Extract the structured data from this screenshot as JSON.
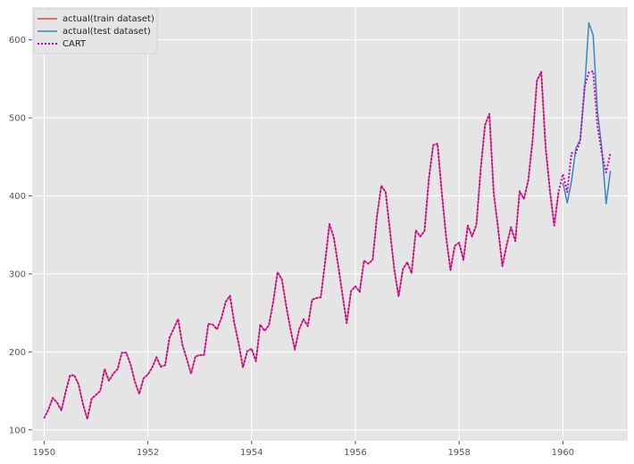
{
  "chart_data": {
    "type": "line",
    "title": "",
    "xlabel": "",
    "ylabel": "",
    "xlim": [
      1949.77,
      1961.25
    ],
    "ylim": [
      86,
      642
    ],
    "x_ticks": [
      "1950",
      "1952",
      "1954",
      "1956",
      "1958",
      "1960"
    ],
    "y_ticks": [
      "100",
      "200",
      "300",
      "400",
      "500",
      "600"
    ],
    "grid": true,
    "legend_position": "top-left",
    "colors": {
      "train": "#e24a33",
      "test": "#348abd",
      "cart": "#bf00bf",
      "background": "#e5e5e5",
      "grid": "#ffffff"
    },
    "series": [
      {
        "name": "actual(train dataset)",
        "x_start": 1950.0,
        "x_step": 0.08333,
        "values": [
          115,
          126,
          141,
          135,
          125,
          149,
          170,
          170,
          158,
          133,
          114,
          140,
          145,
          150,
          178,
          163,
          172,
          178,
          199,
          199,
          184,
          162,
          146,
          166,
          171,
          180,
          193,
          181,
          183,
          218,
          230,
          242,
          209,
          191,
          172,
          194,
          196,
          196,
          236,
          235,
          229,
          243,
          264,
          272,
          237,
          211,
          180,
          201,
          204,
          188,
          235,
          227,
          234,
          264,
          302,
          293,
          259,
          229,
          203,
          229,
          242,
          233,
          267,
          269,
          270,
          315,
          364,
          347,
          312,
          274,
          237,
          278,
          284,
          277,
          317,
          313,
          318,
          374,
          413,
          405,
          355,
          306,
          271,
          306,
          315,
          301,
          356,
          348,
          355,
          422,
          465,
          467,
          404,
          347,
          305,
          336,
          340,
          318,
          362,
          348,
          363,
          435,
          491,
          505,
          404,
          359,
          310,
          337,
          360,
          342,
          406,
          396,
          420,
          472,
          548,
          559,
          463,
          407,
          362,
          405
        ]
      },
      {
        "name": "actual(test dataset)",
        "x_start": 1960.0,
        "x_step": 0.08333,
        "values": [
          417,
          391,
          419,
          461,
          472,
          535,
          622,
          606,
          508,
          461,
          390,
          432
        ]
      },
      {
        "name": "CART",
        "x_start": 1950.0,
        "x_step": 0.08333,
        "values": [
          115,
          126,
          141,
          135,
          125,
          149,
          170,
          170,
          158,
          133,
          114,
          140,
          145,
          150,
          178,
          163,
          172,
          178,
          199,
          199,
          184,
          162,
          146,
          166,
          171,
          180,
          193,
          181,
          183,
          218,
          230,
          242,
          209,
          191,
          172,
          194,
          196,
          196,
          236,
          235,
          229,
          243,
          264,
          272,
          237,
          211,
          180,
          201,
          204,
          188,
          235,
          227,
          234,
          264,
          302,
          293,
          259,
          229,
          203,
          229,
          242,
          233,
          267,
          269,
          270,
          315,
          364,
          347,
          312,
          274,
          237,
          278,
          284,
          277,
          317,
          313,
          318,
          374,
          413,
          405,
          355,
          306,
          271,
          306,
          315,
          301,
          356,
          348,
          355,
          422,
          465,
          467,
          404,
          347,
          305,
          336,
          340,
          318,
          362,
          348,
          363,
          435,
          491,
          505,
          404,
          359,
          310,
          337,
          360,
          342,
          406,
          396,
          420,
          472,
          548,
          559,
          463,
          407,
          362,
          405,
          428,
          405,
          455,
          455,
          470,
          540,
          558,
          560,
          490,
          455,
          430,
          455
        ]
      }
    ]
  }
}
